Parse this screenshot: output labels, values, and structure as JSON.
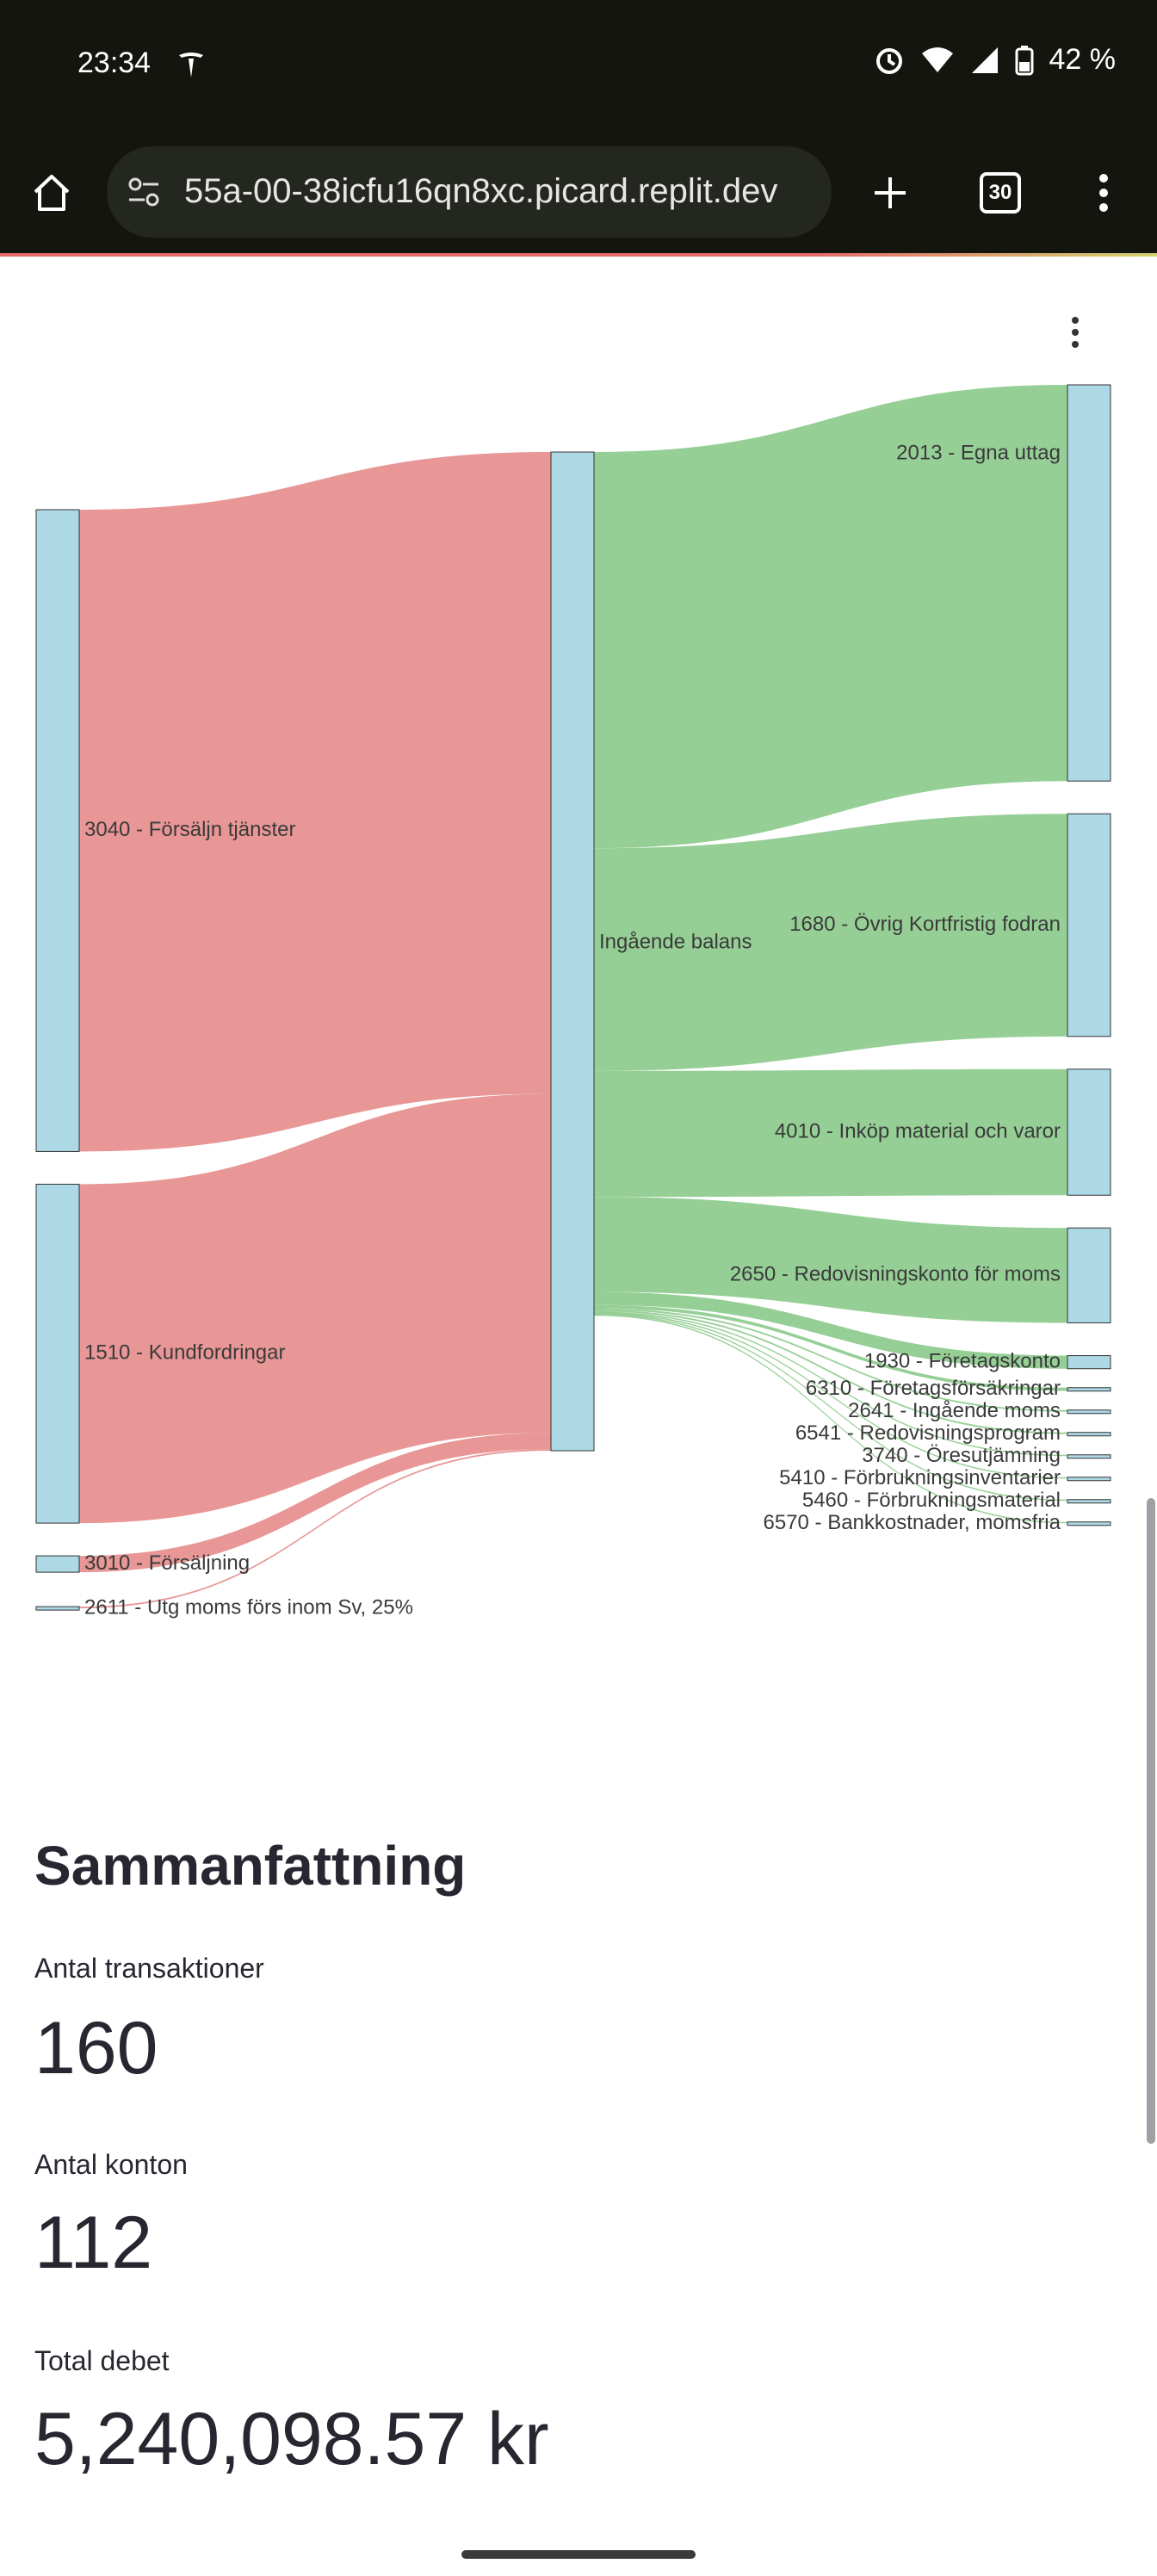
{
  "status_bar": {
    "time": "23:34",
    "battery": "42 %",
    "icons": [
      "tesla-icon",
      "alarm-icon",
      "wifi-icon",
      "signal-icon",
      "battery-icon"
    ]
  },
  "browser": {
    "url": "55a-00-38icfu16qn8xc.picard.replit.dev",
    "tab_count": "30",
    "icons": [
      "home-icon",
      "site-settings-icon",
      "new-tab-icon",
      "tabs-icon",
      "menu-icon"
    ]
  },
  "chart_data": {
    "type": "sankey",
    "colors": {
      "node": "#add8e6",
      "income_link": "#e89696",
      "expense_link": "#96cf96"
    },
    "left_nodes": [
      {
        "label": "3040 - Försäljn tjänster",
        "value": 1960
      },
      {
        "label": "1510 - Kundfordringar",
        "value": 1035
      },
      {
        "label": "3010 - Försäljning",
        "value": 50
      },
      {
        "label": "2611 - Utg moms förs inom Sv, 25%",
        "value": 5
      }
    ],
    "center_node": {
      "label": "Ingående balans",
      "value": 3050
    },
    "right_nodes": [
      {
        "label": "2013 - Egna uttag",
        "value": 1210
      },
      {
        "label": "1680 - Övrig Kortfristig fodran",
        "value": 680
      },
      {
        "label": "4010 - Inköp material och varor",
        "value": 385
      },
      {
        "label": "2650 - Redovisningskonto för moms",
        "value": 290
      },
      {
        "label": "1930 - Företagskonto",
        "value": 40
      },
      {
        "label": "6310 - Företagsförsäkringar",
        "value": 10
      },
      {
        "label": "2641 - Ingående moms",
        "value": 5
      },
      {
        "label": "6541 - Redovisningsprogram",
        "value": 5
      },
      {
        "label": "3740 - Öresutjämning",
        "value": 3
      },
      {
        "label": "5410 - Förbrukningsinventarier",
        "value": 3
      },
      {
        "label": "5460 - Förbrukningsmaterial",
        "value": 3
      },
      {
        "label": "6570 - Bankkostnader, momsfria",
        "value": 3
      }
    ]
  },
  "summary": {
    "title": "Sammanfattning",
    "metrics": [
      {
        "label": "Antal transaktioner",
        "value": "160"
      },
      {
        "label": "Antal konton",
        "value": "112"
      },
      {
        "label": "Total debet",
        "value": "5,240,098.57 kr"
      }
    ]
  }
}
